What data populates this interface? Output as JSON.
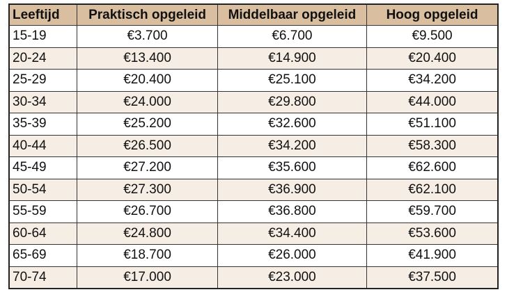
{
  "table": {
    "headers": [
      "Leeftijd",
      "Praktisch opgeleid",
      "Middelbaar opgeleid",
      "Hoog opgeleid"
    ],
    "rows": [
      [
        "15-19",
        "€3.700",
        "€6.700",
        "€9.500"
      ],
      [
        "20-24",
        "€13.400",
        "€14.900",
        "€20.400"
      ],
      [
        "25-29",
        "€20.400",
        "€25.100",
        "€34.200"
      ],
      [
        "30-34",
        "€24.000",
        "€29.800",
        "€44.000"
      ],
      [
        "35-39",
        "€25.200",
        "€32.600",
        "€51.100"
      ],
      [
        "40-44",
        "€26.500",
        "€34.200",
        "€58.300"
      ],
      [
        "45-49",
        "€27.200",
        "€35.600",
        "€62.600"
      ],
      [
        "50-54",
        "€27.300",
        "€36.900",
        "€62.100"
      ],
      [
        "55-59",
        "€26.700",
        "€36.800",
        "€59.700"
      ],
      [
        "60-64",
        "€24.800",
        "€34.400",
        "€53.600"
      ],
      [
        "65-69",
        "€18.700",
        "€26.000",
        "€41.900"
      ],
      [
        "70-74",
        "€17.000",
        "€23.000",
        "€37.500"
      ]
    ],
    "colors": {
      "header_bg": "#d9bea0",
      "alt_row_bg": "#f6ede5",
      "border": "#333333"
    }
  }
}
